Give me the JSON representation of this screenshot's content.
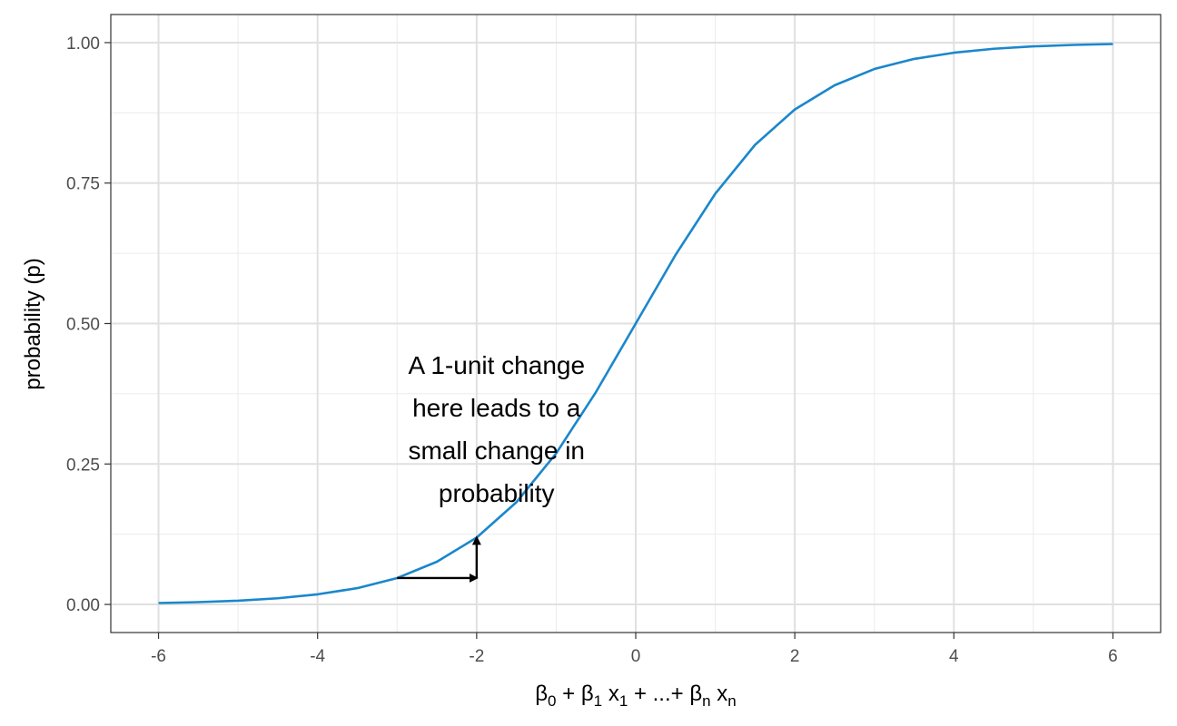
{
  "chart_data": {
    "type": "line",
    "title": "",
    "xlabel_parts": {
      "beta": "β",
      "i0": "0",
      "i1": "1",
      "iN": "n",
      "x": "x",
      "plus": "+",
      "ellipsis_plus": "...+"
    },
    "ylabel": "probability (p)",
    "xlim": [
      -6,
      6
    ],
    "ylim": [
      0,
      1
    ],
    "x_ticks": [
      -6,
      -4,
      -2,
      0,
      2,
      4,
      6
    ],
    "x_tick_labels": [
      "-6",
      "-4",
      "-2",
      "0",
      "2",
      "4",
      "6"
    ],
    "y_ticks": [
      0,
      0.25,
      0.5,
      0.75,
      1
    ],
    "y_tick_labels": [
      "0.00",
      "0.25",
      "0.50",
      "0.75",
      "1.00"
    ],
    "grid": true,
    "legend": "none",
    "series": [
      {
        "color": "#1a87cc",
        "x": [
          -6,
          -5.5,
          -5,
          -4.5,
          -4,
          -3.5,
          -3,
          -2.5,
          -2,
          -1.5,
          -1,
          -0.5,
          0,
          0.5,
          1,
          1.5,
          2,
          2.5,
          3,
          3.5,
          4,
          4.5,
          5,
          5.5,
          6
        ],
        "y": [
          0.0025,
          0.0041,
          0.0067,
          0.011,
          0.018,
          0.029,
          0.047,
          0.076,
          0.119,
          0.182,
          0.269,
          0.378,
          0.5,
          0.622,
          0.731,
          0.818,
          0.881,
          0.924,
          0.953,
          0.971,
          0.982,
          0.989,
          0.9933,
          0.9959,
          0.9975
        ]
      }
    ],
    "annotation": {
      "lines": [
        "A 1-unit change",
        "here leads to a",
        "small change in",
        "probability"
      ],
      "x": -1.75,
      "y_top": 0.41
    },
    "arrows": [
      {
        "from": [
          -3,
          0.047
        ],
        "to": [
          -2,
          0.047
        ]
      },
      {
        "from": [
          -2,
          0.047
        ],
        "to": [
          -2,
          0.119
        ]
      }
    ]
  }
}
